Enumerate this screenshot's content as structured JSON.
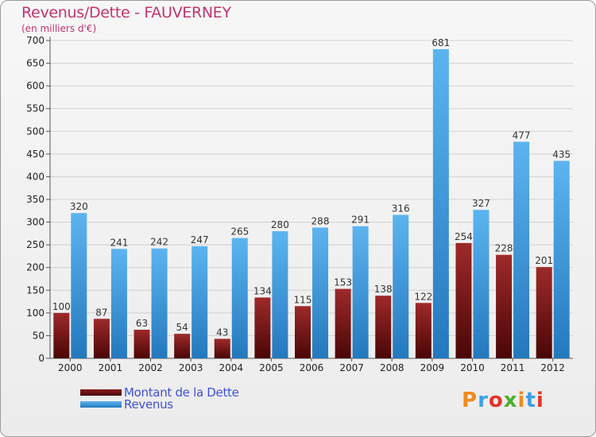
{
  "title": "Revenus/Dette - FAUVERNEY",
  "subtitle": "(en milliers d'€)",
  "legend": {
    "debt_label": "Montant de la Dette",
    "revenue_label": "Revenus"
  },
  "logo_text": "Proxiti",
  "colors": {
    "title": "#c2336e",
    "debt": "#7a1414",
    "revenue": "#3f9be0",
    "legend_text": "#3f51d6"
  },
  "chart_data": {
    "type": "bar",
    "title": "Revenus/Dette - FAUVERNEY",
    "ylabel": "(en milliers d'€)",
    "xlabel": "",
    "ylim": [
      0,
      700
    ],
    "yticks": [
      0,
      50,
      100,
      150,
      200,
      250,
      300,
      350,
      400,
      450,
      500,
      550,
      600,
      650,
      700
    ],
    "categories": [
      "2000",
      "2001",
      "2002",
      "2003",
      "2004",
      "2005",
      "2006",
      "2007",
      "2008",
      "2009",
      "2010",
      "2011",
      "2012"
    ],
    "series": [
      {
        "name": "Montant de la Dette",
        "values": [
          100,
          87,
          63,
          54,
          43,
          134,
          115,
          153,
          138,
          122,
          254,
          228,
          201
        ]
      },
      {
        "name": "Revenus",
        "values": [
          320,
          241,
          242,
          247,
          265,
          280,
          288,
          291,
          316,
          681,
          327,
          477,
          435
        ]
      }
    ],
    "grid": true,
    "legend_position": "bottom-left"
  }
}
